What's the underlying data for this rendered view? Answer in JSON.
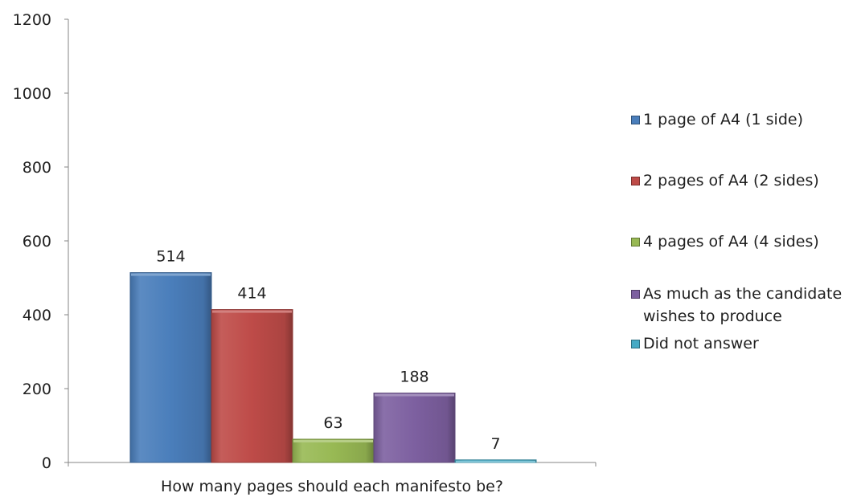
{
  "chart_data": {
    "type": "bar",
    "categories": [
      "How many pages should each manifesto be?"
    ],
    "series": [
      {
        "name": "1 page of A4 (1 side)",
        "values": [
          514
        ],
        "color": "#4a7ebb"
      },
      {
        "name": "2 pages of A4 (2 sides)",
        "values": [
          414
        ],
        "color": "#be4b48"
      },
      {
        "name": "4 pages of A4 (4 sides)",
        "values": [
          63
        ],
        "color": "#98b954"
      },
      {
        "name": "As much as the candidate wishes to produce",
        "values": [
          188
        ],
        "color": "#7d60a0"
      },
      {
        "name": "Did not answer",
        "values": [
          7
        ],
        "color": "#46aac5"
      }
    ],
    "yticks": [
      "0",
      "200",
      "400",
      "600",
      "800",
      "1000",
      "1200"
    ],
    "ylim": [
      0,
      1200
    ],
    "grid": false,
    "legend": "right",
    "data_labels": true
  }
}
